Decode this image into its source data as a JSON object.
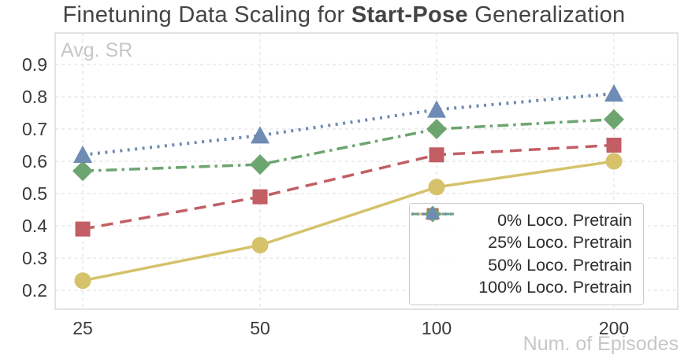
{
  "title": {
    "prefix": "Finetuning Data Scaling for ",
    "bold": "Start-Pose",
    "suffix": " Generalization"
  },
  "chart_data": {
    "type": "line",
    "x": [
      25,
      50,
      100,
      200
    ],
    "x_scale": "log",
    "xlabel": "Num. of Episodes",
    "ylabel": "Avg. SR",
    "yticks": [
      0.2,
      0.3,
      0.4,
      0.5,
      0.6,
      0.7,
      0.8,
      0.9
    ],
    "ylim": [
      0.14,
      1.0
    ],
    "grid": true,
    "grid_style": "dashed-light",
    "legend_position": "lower right",
    "series": [
      {
        "name": "0% Loco. Pretrain",
        "values": [
          0.23,
          0.34,
          0.52,
          0.6
        ],
        "color": "#d5c26a",
        "linestyle": "solid",
        "marker": "circle"
      },
      {
        "name": "25% Loco. Pretrain",
        "values": [
          0.39,
          0.49,
          0.62,
          0.65
        ],
        "color": "#c25e64",
        "linestyle": "dashed",
        "marker": "square"
      },
      {
        "name": "50% Loco. Pretrain",
        "values": [
          0.57,
          0.59,
          0.7,
          0.73
        ],
        "color": "#6ca570",
        "linestyle": "dashdot",
        "marker": "diamond"
      },
      {
        "name": "100% Loco. Pretrain",
        "values": [
          0.62,
          0.68,
          0.76,
          0.81
        ],
        "color": "#6e8cb4",
        "linestyle": "dotted",
        "marker": "triangle"
      }
    ],
    "colors": {
      "title_text": "#444444",
      "axis_label_text": "#c7c7c7",
      "tick_text": "#3a3a3a",
      "gridline": "#dedede",
      "spine": "#d4d4d4",
      "background": "#ffffff"
    }
  }
}
